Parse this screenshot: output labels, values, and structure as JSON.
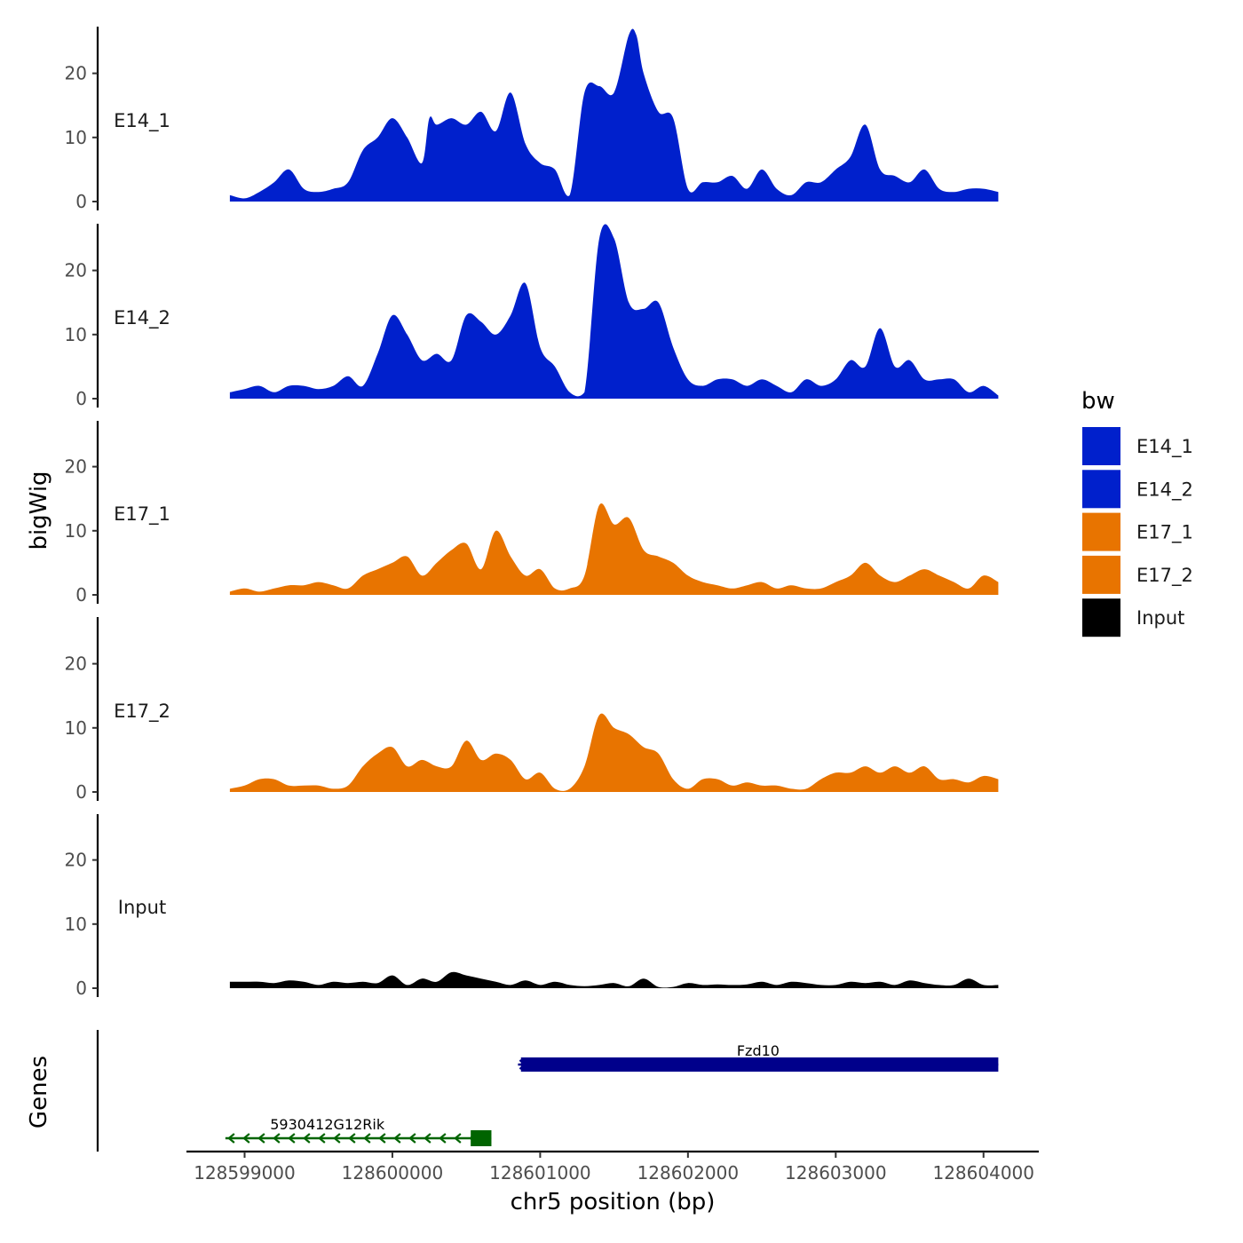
{
  "chart_data": {
    "type": "area",
    "subtype": "genome-track",
    "xlabel": "chr5 position (bp)",
    "ylabel": "bigWig",
    "gene_panel_label": "Genes",
    "xlim": [
      128598600,
      128604300
    ],
    "x_ticks": [
      128599000,
      128600000,
      128601000,
      128602000,
      128603000,
      128604000
    ],
    "x_tick_labels": [
      "128599000",
      "128600000",
      "128601000",
      "128602000",
      "128603000",
      "128604000"
    ],
    "ylim": [
      0,
      27
    ],
    "y_ticks": [
      0,
      10,
      20
    ],
    "y_tick_labels": [
      "0",
      "10",
      "20"
    ],
    "signal_start": 128598900,
    "signal_end": 128604100,
    "legend": {
      "title": "bw",
      "placement": "right",
      "items": [
        {
          "label": "E14_1",
          "color": "#0020CC"
        },
        {
          "label": "E14_2",
          "color": "#0020CC"
        },
        {
          "label": "E17_1",
          "color": "#E87400"
        },
        {
          "label": "E17_2",
          "color": "#E87400"
        },
        {
          "label": "Input",
          "color": "#000000"
        }
      ]
    },
    "series": [
      {
        "name": "E14_1",
        "color": "#0020CC",
        "x": [
          128598900,
          128599000,
          128599100,
          128599200,
          128599300,
          128599400,
          128599500,
          128599600,
          128599700,
          128599800,
          128599900,
          128600000,
          128600100,
          128600200,
          128600250,
          128600300,
          128600400,
          128600500,
          128600600,
          128600700,
          128600800,
          128600900,
          128601000,
          128601100,
          128601200,
          128601300,
          128601400,
          128601500,
          128601600,
          128601650,
          128601700,
          128601800,
          128601900,
          128602000,
          128602100,
          128602200,
          128602300,
          128602400,
          128602500,
          128602600,
          128602700,
          128602800,
          128602900,
          128603000,
          128603100,
          128603200,
          128603300,
          128603400,
          128603500,
          128603600,
          128603700,
          128603800,
          128603900,
          128604000,
          128604100
        ],
        "values": [
          1,
          0.5,
          1.5,
          3,
          5,
          2,
          1.5,
          2,
          3,
          8,
          10,
          13,
          10,
          6,
          13,
          12,
          13,
          12,
          14,
          11,
          17,
          9,
          6,
          5,
          1,
          17,
          18,
          17,
          26,
          26,
          20,
          14,
          13,
          2,
          3,
          3,
          4,
          2,
          5,
          2,
          1,
          3,
          3,
          5,
          7,
          12,
          5,
          4,
          3,
          5,
          2,
          1.5,
          2,
          2,
          1.5
        ]
      },
      {
        "name": "E14_2",
        "color": "#0020CC",
        "x": [
          128598900,
          128599000,
          128599100,
          128599200,
          128599300,
          128599400,
          128599500,
          128599600,
          128599700,
          128599800,
          128599900,
          128600000,
          128600100,
          128600200,
          128600300,
          128600400,
          128600500,
          128600600,
          128600700,
          128600800,
          128600900,
          128601000,
          128601100,
          128601200,
          128601300,
          128601400,
          128601500,
          128601600,
          128601700,
          128601800,
          128601900,
          128602000,
          128602100,
          128602200,
          128602300,
          128602400,
          128602500,
          128602600,
          128602700,
          128602800,
          128602900,
          128603000,
          128603100,
          128603200,
          128603300,
          128603400,
          128603500,
          128603600,
          128603700,
          128603800,
          128603900,
          128604000,
          128604100
        ],
        "values": [
          1,
          1.5,
          2,
          1,
          2,
          2,
          1.5,
          2,
          3.5,
          2,
          7,
          13,
          10,
          6,
          7,
          6,
          13,
          12,
          10,
          13,
          18,
          8,
          5,
          1,
          1,
          25,
          25,
          15,
          14,
          15,
          8,
          3,
          2,
          3,
          3,
          2,
          3,
          2,
          1,
          3,
          2,
          3,
          6,
          5,
          11,
          5,
          6,
          3,
          3,
          3,
          1,
          2,
          0.5
        ]
      },
      {
        "name": "E17_1",
        "color": "#E87400",
        "x": [
          128598900,
          128599000,
          128599100,
          128599200,
          128599300,
          128599400,
          128599500,
          128599600,
          128599700,
          128599800,
          128599900,
          128600000,
          128600100,
          128600200,
          128600300,
          128600400,
          128600500,
          128600600,
          128600700,
          128600800,
          128600900,
          128601000,
          128601100,
          128601200,
          128601300,
          128601400,
          128601500,
          128601600,
          128601700,
          128601800,
          128601900,
          128602000,
          128602100,
          128602200,
          128602300,
          128602400,
          128602500,
          128602600,
          128602700,
          128602800,
          128602900,
          128603000,
          128603100,
          128603200,
          128603300,
          128603400,
          128603500,
          128603600,
          128603700,
          128603800,
          128603900,
          128604000,
          128604100
        ],
        "values": [
          0.5,
          1,
          0.5,
          1,
          1.5,
          1.5,
          2,
          1.5,
          1,
          3,
          4,
          5,
          6,
          3,
          5,
          7,
          8,
          4,
          10,
          6,
          3,
          4,
          1,
          1,
          3,
          14,
          11,
          12,
          7,
          6,
          5,
          3,
          2,
          1.5,
          1,
          1.5,
          2,
          1,
          1.5,
          1,
          1,
          2,
          3,
          5,
          3,
          2,
          3,
          4,
          3,
          2,
          1,
          3,
          2
        ]
      },
      {
        "name": "E17_2",
        "color": "#E87400",
        "x": [
          128598900,
          128599000,
          128599100,
          128599200,
          128599300,
          128599400,
          128599500,
          128599600,
          128599700,
          128599800,
          128599900,
          128600000,
          128600100,
          128600200,
          128600300,
          128600400,
          128600500,
          128600600,
          128600700,
          128600800,
          128600900,
          128601000,
          128601100,
          128601200,
          128601300,
          128601400,
          128601500,
          128601600,
          128601700,
          128601800,
          128601900,
          128602000,
          128602100,
          128602200,
          128602300,
          128602400,
          128602500,
          128602600,
          128602700,
          128602800,
          128602900,
          128603000,
          128603100,
          128603200,
          128603300,
          128603400,
          128603500,
          128603600,
          128603700,
          128603800,
          128603900,
          128604000,
          128604100
        ],
        "values": [
          0.5,
          1,
          2,
          2,
          1,
          1,
          1,
          0.5,
          1,
          4,
          6,
          7,
          4,
          5,
          4,
          4,
          8,
          5,
          6,
          5,
          2,
          3,
          0.5,
          0.5,
          4,
          12,
          10,
          9,
          7,
          6,
          2,
          0.5,
          2,
          2,
          1,
          1.5,
          1,
          1,
          0.5,
          0.5,
          2,
          3,
          3,
          4,
          3,
          4,
          3,
          4,
          2,
          2,
          1.5,
          2.5,
          2
        ]
      },
      {
        "name": "Input",
        "color": "#000000",
        "x": [
          128598900,
          128599000,
          128599100,
          128599200,
          128599300,
          128599400,
          128599500,
          128599600,
          128599700,
          128599800,
          128599900,
          128600000,
          128600100,
          128600200,
          128600300,
          128600400,
          128600500,
          128600600,
          128600700,
          128600800,
          128600900,
          128601000,
          128601100,
          128601200,
          128601300,
          128601400,
          128601500,
          128601600,
          128601700,
          128601800,
          128601900,
          128602000,
          128602100,
          128602200,
          128602300,
          128602400,
          128602500,
          128602600,
          128602700,
          128602800,
          128602900,
          128603000,
          128603100,
          128603200,
          128603300,
          128603400,
          128603500,
          128603600,
          128603700,
          128603800,
          128603900,
          128604000,
          128604100
        ],
        "values": [
          1,
          1,
          1,
          0.8,
          1.2,
          1,
          0.5,
          1,
          0.8,
          1,
          0.8,
          2,
          0.5,
          1.5,
          1,
          2.5,
          2,
          1.5,
          1,
          0.5,
          1.2,
          0.5,
          1,
          0.5,
          0.3,
          0.5,
          0.8,
          0.3,
          1.5,
          0.2,
          0.2,
          0.8,
          0.5,
          0.6,
          0.5,
          0.6,
          1,
          0.5,
          1,
          0.8,
          0.5,
          0.5,
          1,
          0.8,
          1,
          0.5,
          1.2,
          0.8,
          0.5,
          0.5,
          1.5,
          0.5,
          0.5
        ]
      }
    ],
    "genes": [
      {
        "name": "5930412G12Rik",
        "start": 128598870,
        "end": 128600670,
        "strand": "-",
        "color": "#006400",
        "thick_start": 128600530,
        "thick_end": 128600670
      },
      {
        "name": "Fzd10",
        "start": 128600850,
        "end": 128604100,
        "strand": "+",
        "color": "#00008B",
        "thick_start": 128600870,
        "thick_end": 128604100
      }
    ]
  }
}
